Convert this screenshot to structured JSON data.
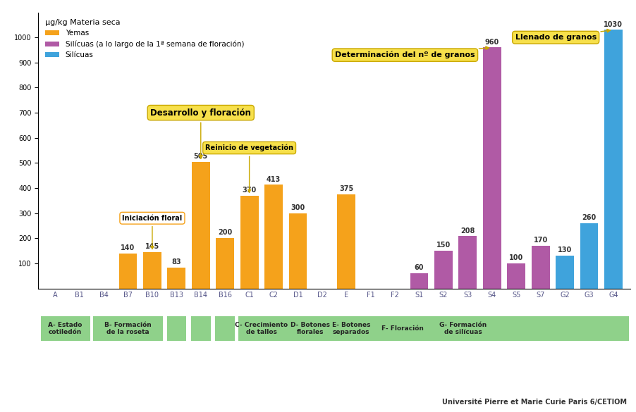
{
  "chart_data": {
    "type": "bar",
    "y_label": "µg/kg Materia seca",
    "categories": [
      "A",
      "B1",
      "B4",
      "B7",
      "B10",
      "B13",
      "B14",
      "B16",
      "C1",
      "C2",
      "D1",
      "D2",
      "E",
      "F1",
      "F2",
      "S1",
      "S2",
      "S3",
      "S4",
      "S5",
      "S7",
      "G2",
      "G3",
      "G4"
    ],
    "series": [
      {
        "name": "Yemas",
        "color": "#f5a21b",
        "values": [
          null,
          null,
          null,
          140,
          145,
          83,
          505,
          200,
          370,
          413,
          300,
          null,
          375,
          null,
          null,
          null,
          null,
          null,
          null,
          null,
          null,
          null,
          null,
          null
        ]
      },
      {
        "name": "Silícuas (a lo largo de la 1ª semana de floración)",
        "color": "#b05aa5",
        "values": [
          null,
          null,
          null,
          null,
          null,
          null,
          null,
          null,
          null,
          null,
          null,
          null,
          null,
          null,
          null,
          60,
          150,
          208,
          960,
          100,
          170,
          null,
          null,
          null
        ]
      },
      {
        "name": "Silícuas",
        "color": "#3fa3dc",
        "values": [
          null,
          null,
          null,
          null,
          null,
          null,
          null,
          null,
          null,
          null,
          null,
          null,
          null,
          null,
          null,
          null,
          null,
          null,
          null,
          null,
          null,
          130,
          260,
          1030
        ]
      }
    ],
    "ylim": [
      0,
      1100
    ],
    "yticks": [
      100,
      200,
      300,
      400,
      500,
      600,
      700,
      800,
      900,
      1000
    ],
    "grid": false,
    "legend": "upper left",
    "data_labels": true,
    "annotations": [
      {
        "text": "Iniciación floral",
        "category": "B10"
      },
      {
        "text": "Desarrollo y floración",
        "category": "B14"
      },
      {
        "text": "Reinicio de vegetación",
        "category": "C1"
      },
      {
        "text": "Determinación del nº de granos",
        "category": "S4"
      },
      {
        "text": "Llenado de granos",
        "category": "G4"
      }
    ],
    "stages": [
      "A- Estado\ncotiledón",
      "B- Formación\nde la roseta",
      "C- Crecimiento\nde tallos",
      "D- Botones\nflorales",
      "E- Botones\nseparados",
      "F- Floración",
      "G- Formación\nde silícuas"
    ],
    "source": "Université Pierre et Marie Curie Paris 6/CETIOM"
  }
}
